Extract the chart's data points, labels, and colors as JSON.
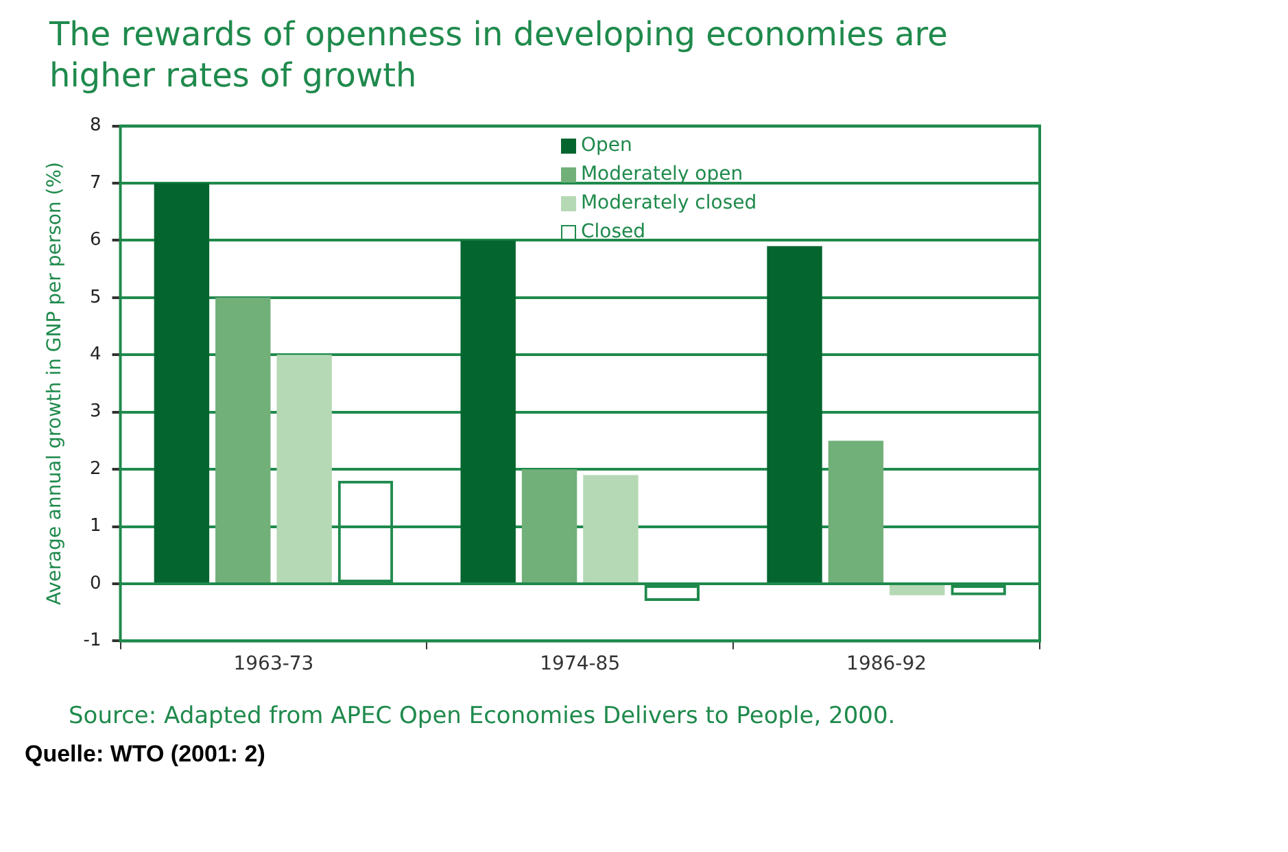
{
  "chart_data": {
    "type": "bar",
    "title": "The rewards of openness in developing economies are higher rates of growth",
    "ylabel": "Average annual growth in GNP per person (%)",
    "categories": [
      "1963-73",
      "1974-85",
      "1986-92"
    ],
    "series": [
      {
        "name": "Open",
        "color": "#05652f",
        "values": [
          7,
          6,
          5.9
        ]
      },
      {
        "name": "Moderately open",
        "color": "#72b07a",
        "values": [
          5,
          2,
          2.5
        ]
      },
      {
        "name": "Moderately closed",
        "color": "#b5d9b5",
        "values": [
          4,
          1.9,
          -0.2
        ]
      },
      {
        "name": "Closed",
        "color": "#1f8a4c",
        "values": [
          1.8,
          -0.3,
          -0.2
        ]
      }
    ],
    "ylim": [
      -1,
      8
    ],
    "yticks": [
      -1,
      0,
      1,
      2,
      3,
      4,
      5,
      6,
      7,
      8
    ],
    "grid": "y",
    "legend": "top",
    "annotations": [
      "Source: Adapted from APEC Open Economies Delivers to People, 2000.",
      "Quelle: WTO (2001: 2)"
    ]
  }
}
